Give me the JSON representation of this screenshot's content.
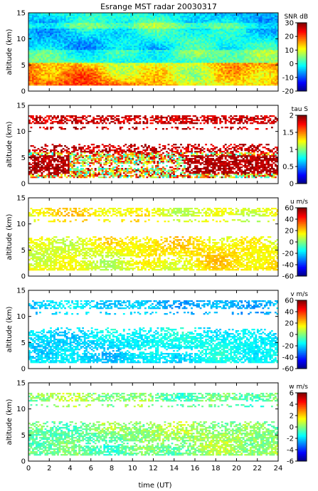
{
  "title": "Esrange MST radar 20030317",
  "xlabel": "time (UT)",
  "ylabel": "altitude (km)",
  "chart_data": [
    {
      "type": "heatmap",
      "quantity": "SNR",
      "colorbar_label": "SNR dB",
      "x": {
        "range": [
          0,
          24
        ],
        "ticks": [
          0,
          2,
          4,
          6,
          8,
          10,
          12,
          14,
          16,
          18,
          20,
          22,
          24
        ]
      },
      "y": {
        "range": [
          0,
          15
        ],
        "ticks": [
          0,
          5,
          10,
          15
        ]
      },
      "clim": [
        -20,
        30
      ],
      "cticks": [
        -20,
        -10,
        0,
        10,
        20,
        30
      ],
      "colormap": "jet",
      "data_extent_km": [
        1.2,
        15
      ],
      "coverage": "full"
    },
    {
      "type": "heatmap",
      "quantity": "tau",
      "colorbar_label": "tau S",
      "x": {
        "range": [
          0,
          24
        ],
        "ticks": [
          0,
          2,
          4,
          6,
          8,
          10,
          12,
          14,
          16,
          18,
          20,
          22,
          24
        ]
      },
      "y": {
        "range": [
          0,
          15
        ],
        "ticks": [
          0,
          5,
          10,
          15
        ]
      },
      "clim": [
        0,
        2
      ],
      "cticks": [
        0,
        0.5,
        1,
        1.5,
        2
      ],
      "colormap": "jet",
      "coverage": "sparse"
    },
    {
      "type": "heatmap",
      "quantity": "u",
      "colorbar_label": "u m/s",
      "x": {
        "range": [
          0,
          24
        ],
        "ticks": [
          0,
          2,
          4,
          6,
          8,
          10,
          12,
          14,
          16,
          18,
          20,
          22,
          24
        ]
      },
      "y": {
        "range": [
          0,
          15
        ],
        "ticks": [
          0,
          5,
          10,
          15
        ]
      },
      "clim": [
        -60,
        60
      ],
      "cticks": [
        -60,
        -40,
        -20,
        0,
        20,
        40,
        60
      ],
      "colormap": "jet",
      "coverage": "sparse"
    },
    {
      "type": "heatmap",
      "quantity": "v",
      "colorbar_label": "v m/s",
      "x": {
        "range": [
          0,
          24
        ],
        "ticks": [
          0,
          2,
          4,
          6,
          8,
          10,
          12,
          14,
          16,
          18,
          20,
          22,
          24
        ]
      },
      "y": {
        "range": [
          0,
          15
        ],
        "ticks": [
          0,
          5,
          10,
          15
        ]
      },
      "clim": [
        -60,
        60
      ],
      "cticks": [
        -60,
        -40,
        -20,
        0,
        20,
        40,
        60
      ],
      "colormap": "jet",
      "coverage": "sparse"
    },
    {
      "type": "heatmap",
      "quantity": "w",
      "colorbar_label": "w m/s",
      "x": {
        "range": [
          0,
          24
        ],
        "ticks": [
          0,
          2,
          4,
          6,
          8,
          10,
          12,
          14,
          16,
          18,
          20,
          22,
          24
        ]
      },
      "y": {
        "range": [
          0,
          15
        ],
        "ticks": [
          0,
          5,
          10,
          15
        ]
      },
      "clim": [
        -6,
        6
      ],
      "cticks": [
        -6,
        -4,
        -2,
        0,
        2,
        4,
        6
      ],
      "colormap": "jet",
      "coverage": "sparse"
    }
  ]
}
